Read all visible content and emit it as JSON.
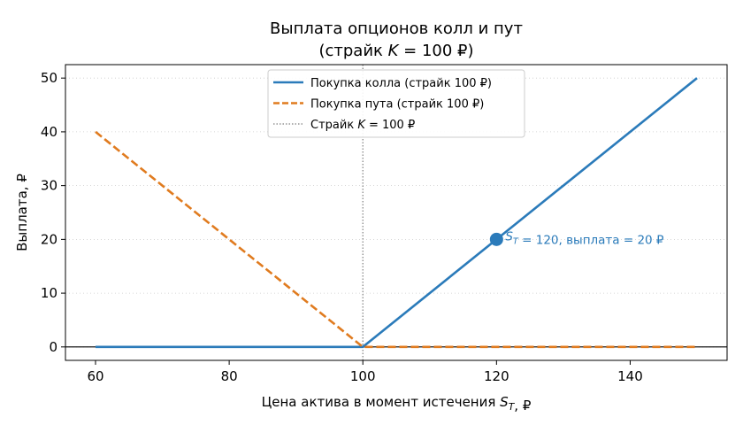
{
  "chart_data": {
    "type": "line",
    "title": [
      "Выплата опционов колл и пут",
      "(страйк K = 100 ₽)"
    ],
    "xlabel": "Цена актива в момент истечения S_T, ₽",
    "ylabel": "Выплата, ₽",
    "xlim": [
      55.5,
      154.5
    ],
    "ylim": [
      -2.5,
      52.5
    ],
    "xticks": [
      60,
      80,
      100,
      120,
      140
    ],
    "yticks": [
      0,
      10,
      20,
      30,
      40,
      50
    ],
    "grid": "horizontal-dotted",
    "legend_position": "top-center",
    "series": [
      {
        "name": "Покупка колла (страйк 100 ₽)",
        "style": "solid",
        "color": "#2b7bba",
        "x": [
          60,
          100,
          150
        ],
        "y": [
          0,
          0,
          50
        ]
      },
      {
        "name": "Покупка пута (страйк 100 ₽)",
        "style": "dashed",
        "color": "#e07b1f",
        "x": [
          60,
          100,
          150
        ],
        "y": [
          40,
          0,
          0
        ]
      }
    ],
    "reference_lines": [
      {
        "name": "Страйк K = 100 ₽",
        "orientation": "vertical",
        "x": 100,
        "style": "dotted",
        "color": "#808080"
      },
      {
        "orientation": "horizontal",
        "y": 0,
        "style": "solid",
        "color": "#000000"
      }
    ],
    "annotations": [
      {
        "x": 120,
        "y": 20,
        "text": "S_T = 120, выплата = 20 ₽",
        "color": "#2b7bba"
      }
    ]
  }
}
